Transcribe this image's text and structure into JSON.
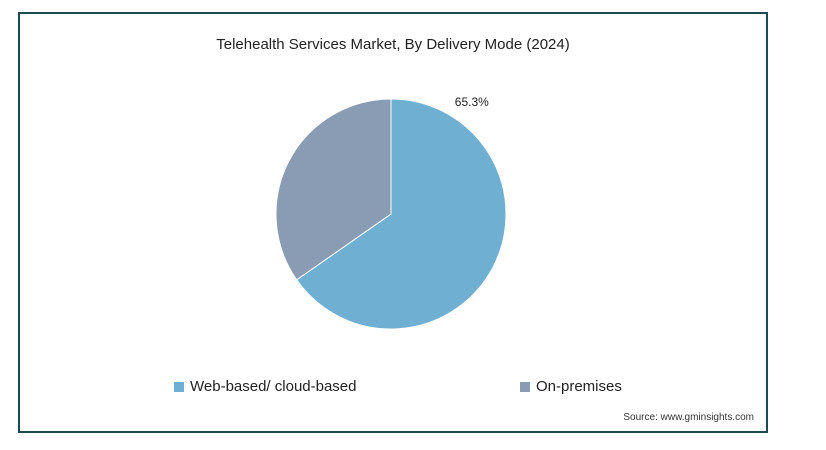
{
  "chart_data": {
    "type": "pie",
    "title": "Telehealth Services Market, By Delivery Mode (2024)",
    "categories": [
      "Web-based/ cloud-based",
      "On-premises"
    ],
    "values": [
      65.3,
      34.7
    ],
    "data_labels": [
      "65.3%",
      ""
    ],
    "colors": [
      "#6FAFD2",
      "#8A9BB4"
    ],
    "legend_placement": "bottom",
    "source": "Source: www.gminsights.com"
  }
}
